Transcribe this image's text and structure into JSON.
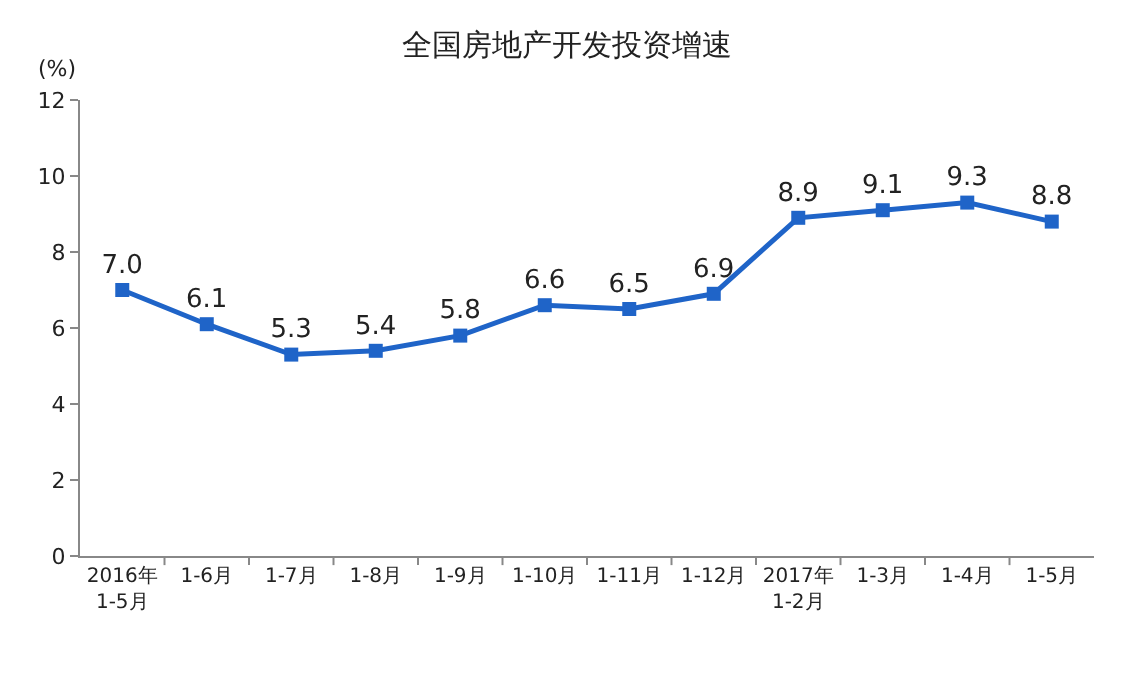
{
  "chart_data": {
    "type": "line",
    "title": "全国房地产开发投资增速",
    "ylabel": "(%)",
    "categories": [
      "2016年\n1-5月",
      "1-6月",
      "1-7月",
      "1-8月",
      "1-9月",
      "1-10月",
      "1-11月",
      "1-12月",
      "2017年\n1-2月",
      "1-3月",
      "1-4月",
      "1-5月"
    ],
    "series": [
      {
        "color": "#1f64c8",
        "values": [
          7.0,
          6.1,
          5.3,
          5.4,
          5.8,
          6.6,
          6.5,
          6.9,
          8.9,
          9.1,
          9.3,
          8.8
        ],
        "value_labels": [
          "7.0",
          "6.1",
          "5.3",
          "5.4",
          "5.8",
          "6.6",
          "6.5",
          "6.9",
          "8.9",
          "9.1",
          "9.3",
          "8.8"
        ]
      }
    ],
    "ylim": [
      0,
      12
    ],
    "yticks": [
      0,
      2,
      4,
      6,
      8,
      10,
      12
    ],
    "grid": false,
    "marker": "square",
    "line_style": "solid"
  }
}
